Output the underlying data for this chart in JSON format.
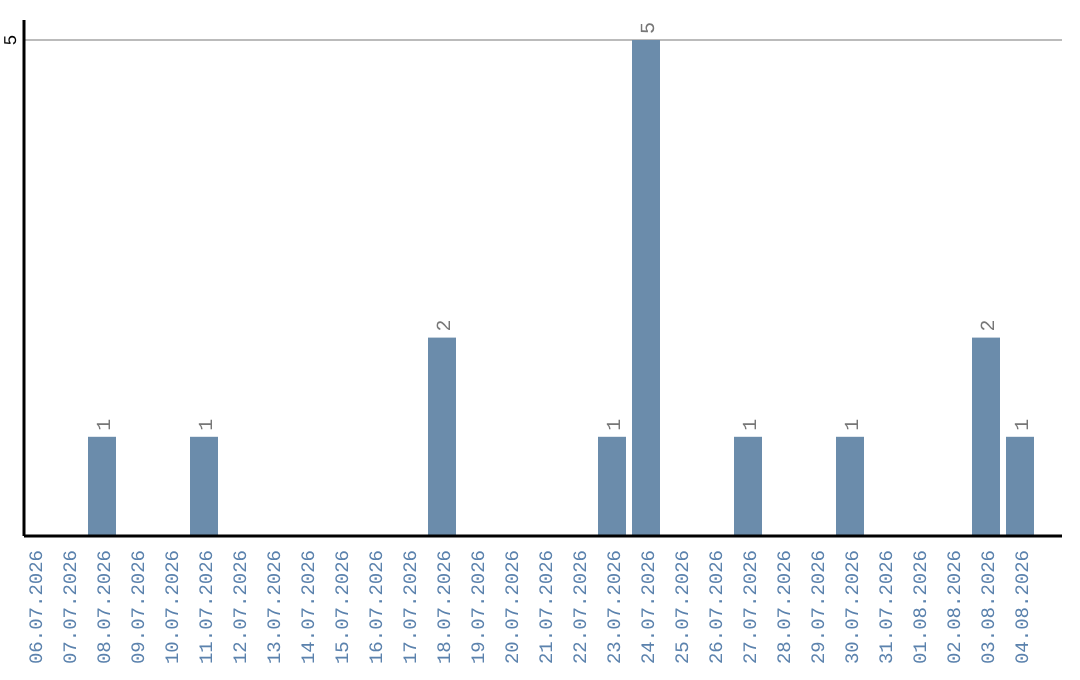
{
  "chart_data": {
    "type": "bar",
    "categories": [
      "06.07.2026",
      "07.07.2026",
      "08.07.2026",
      "09.07.2026",
      "10.07.2026",
      "11.07.2026",
      "12.07.2026",
      "13.07.2026",
      "14.07.2026",
      "15.07.2026",
      "16.07.2026",
      "17.07.2026",
      "18.07.2026",
      "19.07.2026",
      "20.07.2026",
      "21.07.2026",
      "22.07.2026",
      "23.07.2026",
      "24.07.2026",
      "25.07.2026",
      "26.07.2026",
      "27.07.2026",
      "28.07.2026",
      "29.07.2026",
      "30.07.2026",
      "31.07.2026",
      "01.08.2026",
      "02.08.2026",
      "03.08.2026",
      "04.08.2026"
    ],
    "values": [
      0,
      0,
      1,
      0,
      0,
      1,
      0,
      0,
      0,
      0,
      0,
      0,
      2,
      0,
      0,
      0,
      0,
      1,
      5,
      0,
      0,
      1,
      0,
      0,
      1,
      0,
      0,
      0,
      2,
      1
    ],
    "value_labels": [
      null,
      null,
      "1",
      null,
      null,
      "1",
      null,
      null,
      null,
      null,
      null,
      null,
      "2",
      null,
      null,
      null,
      null,
      "1",
      "5",
      null,
      null,
      "1",
      null,
      null,
      "1",
      null,
      null,
      null,
      "2",
      "1"
    ],
    "color": "#6b8cab",
    "ylim": [
      0,
      5
    ],
    "yticks": [
      5
    ]
  }
}
